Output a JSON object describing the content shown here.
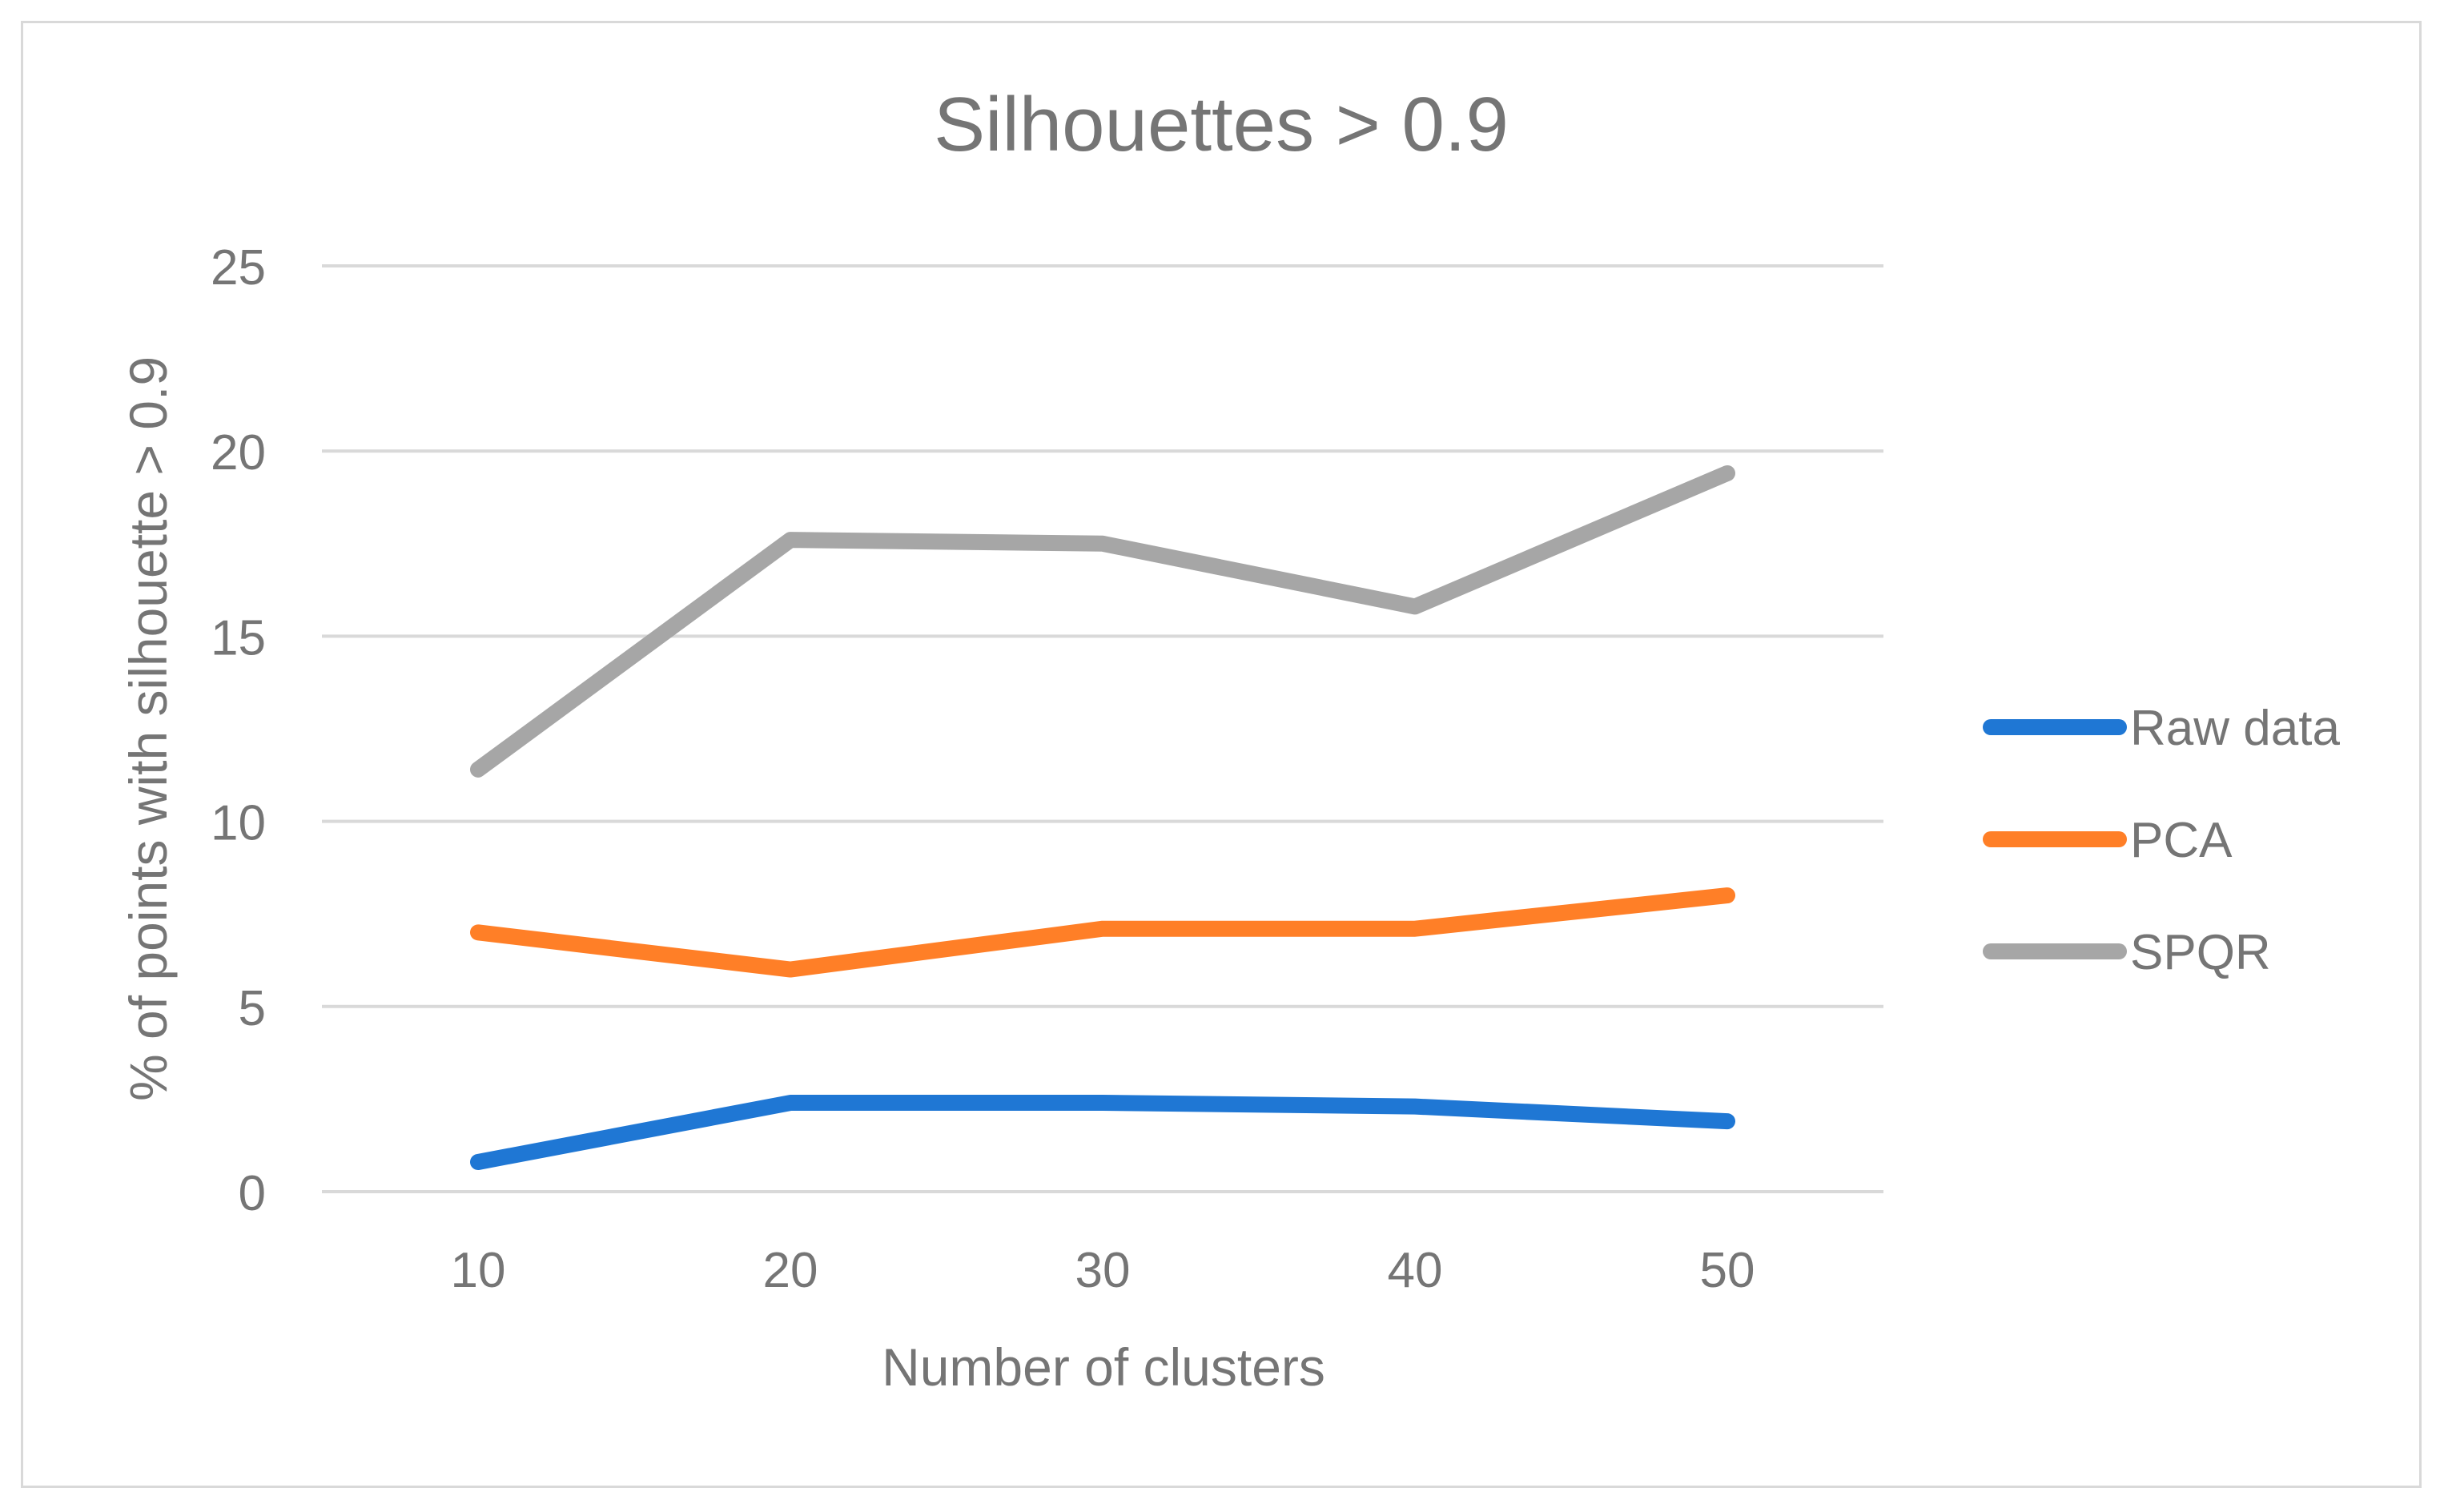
{
  "chart_data": {
    "type": "line",
    "title": "Silhouettes > 0.9",
    "xlabel": "Number of clusters",
    "ylabel": "% of points with silhouette > 0.9",
    "categories": [
      "10",
      "20",
      "30",
      "40",
      "50"
    ],
    "ylim": [
      0,
      25
    ],
    "yticks": [
      "0",
      "5",
      "10",
      "15",
      "20",
      "25"
    ],
    "grid": true,
    "legend_position": "right",
    "series": [
      {
        "name": "Raw data",
        "color": "#1f77d4",
        "values": [
          0.8,
          2.4,
          2.4,
          2.3,
          1.9
        ]
      },
      {
        "name": "PCA",
        "color": "#ff7f27",
        "values": [
          7.0,
          6.0,
          7.1,
          7.1,
          8.0
        ]
      },
      {
        "name": "SPQR",
        "color": "#a6a6a6",
        "values": [
          11.4,
          17.6,
          17.5,
          15.8,
          19.4
        ]
      }
    ]
  }
}
